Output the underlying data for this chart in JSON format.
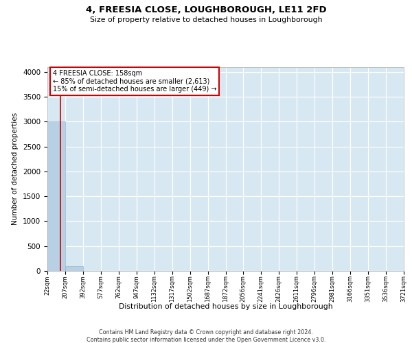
{
  "title": "4, FREESIA CLOSE, LOUGHBOROUGH, LE11 2FD",
  "subtitle": "Size of property relative to detached houses in Loughborough",
  "xlabel": "Distribution of detached houses by size in Loughborough",
  "ylabel": "Number of detached properties",
  "footer_line1": "Contains HM Land Registry data © Crown copyright and database right 2024.",
  "footer_line2": "Contains public sector information licensed under the Open Government Licence v3.0.",
  "annotation_line1": "4 FREESIA CLOSE: 158sqm",
  "annotation_line2": "← 85% of detached houses are smaller (2,613)",
  "annotation_line3": "15% of semi-detached houses are larger (449) →",
  "bar_edges": [
    22,
    207,
    392,
    577,
    762,
    947,
    1132,
    1317,
    1502,
    1687,
    1872,
    2056,
    2241,
    2426,
    2611,
    2796,
    2981,
    3166,
    3351,
    3536,
    3721
  ],
  "bar_heights": [
    3000,
    100,
    0,
    0,
    0,
    0,
    0,
    0,
    0,
    0,
    0,
    0,
    0,
    0,
    0,
    0,
    0,
    0,
    0,
    0
  ],
  "bar_color": "#b8d0e3",
  "bar_edgecolor": "#9ab8cc",
  "grid_color": "#ffffff",
  "bg_color": "#d8e8f3",
  "property_line_x": 158,
  "property_line_color": "#cc0000",
  "annotation_box_edgecolor": "#cc0000",
  "ylim_max": 4100,
  "yticks": [
    0,
    500,
    1000,
    1500,
    2000,
    2500,
    3000,
    3500,
    4000
  ]
}
